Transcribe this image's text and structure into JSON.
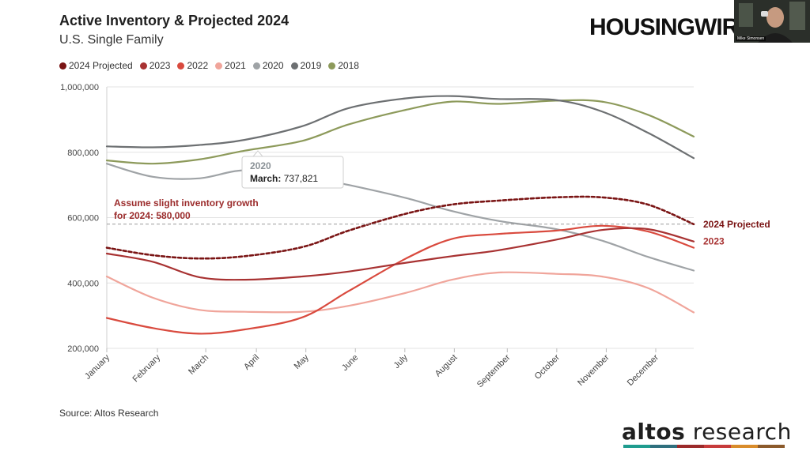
{
  "header": {
    "title": "Active Inventory & Projected 2024",
    "subtitle": "U.S. Single Family",
    "brand": "HOUSINGWIRE",
    "webcam_caption": "Mike Simonsen"
  },
  "footer": {
    "source": "Source: Altos Research",
    "logo_word1": "altos",
    "logo_word2": "research",
    "logo_bar_colors": [
      "#1f9c8e",
      "#2f6f7d",
      "#9b2a2a",
      "#c73b3b",
      "#d98c2b",
      "#8b5a2b"
    ]
  },
  "chart_data": {
    "type": "line",
    "title": "Active Inventory & Projected 2024",
    "subtitle": "U.S. Single Family",
    "ylim": [
      200000,
      1000000
    ],
    "yticks": [
      {
        "value": 200000,
        "label": "200,000"
      },
      {
        "value": 400000,
        "label": "400,000"
      },
      {
        "value": 600000,
        "label": "600,000"
      },
      {
        "value": 800000,
        "label": "800,000"
      },
      {
        "value": 1000000,
        "label": "1,000,000"
      }
    ],
    "grid": true,
    "legend_position": "top-left",
    "x_weeks": [
      1,
      5,
      9,
      13,
      18,
      22,
      27,
      31,
      35,
      40,
      44,
      48,
      52
    ],
    "xticks": [
      {
        "week": 1,
        "label": "January"
      },
      {
        "week": 5.4,
        "label": "February"
      },
      {
        "week": 9.6,
        "label": "March"
      },
      {
        "week": 14,
        "label": "April"
      },
      {
        "week": 18.3,
        "label": "May"
      },
      {
        "week": 22.6,
        "label": "June"
      },
      {
        "week": 26.9,
        "label": "July"
      },
      {
        "week": 31.2,
        "label": "August"
      },
      {
        "week": 35.8,
        "label": "September"
      },
      {
        "week": 40.1,
        "label": "October"
      },
      {
        "week": 44.4,
        "label": "November"
      },
      {
        "week": 48.7,
        "label": "December"
      }
    ],
    "series": [
      {
        "name": "2018",
        "color": "#8d9a5b",
        "dashed": false,
        "values": [
          775000,
          765000,
          778000,
          805000,
          835000,
          885000,
          930000,
          955000,
          948000,
          958000,
          955000,
          915000,
          848000
        ]
      },
      {
        "name": "2019",
        "color": "#6d7072",
        "dashed": false,
        "values": [
          818000,
          815000,
          822000,
          838000,
          880000,
          935000,
          965000,
          972000,
          963000,
          960000,
          925000,
          860000,
          782000
        ]
      },
      {
        "name": "2020",
        "color": "#9fa3a6",
        "dashed": false,
        "values": [
          765000,
          725000,
          720000,
          745000,
          728000,
          700000,
          660000,
          620000,
          590000,
          565000,
          530000,
          480000,
          438000
        ]
      },
      {
        "name": "2021",
        "color": "#f0a59b",
        "dashed": false,
        "values": [
          420000,
          355000,
          318000,
          312000,
          312000,
          330000,
          370000,
          410000,
          432000,
          428000,
          420000,
          385000,
          310000
        ]
      },
      {
        "name": "2022",
        "color": "#d94a3e",
        "dashed": false,
        "values": [
          293000,
          262000,
          245000,
          258000,
          295000,
          375000,
          475000,
          535000,
          550000,
          560000,
          575000,
          558000,
          508000
        ]
      },
      {
        "name": "2023",
        "color": "#a83232",
        "dashed": false,
        "values": [
          490000,
          465000,
          418000,
          410000,
          420000,
          435000,
          462000,
          482000,
          500000,
          532000,
          562000,
          565000,
          527000
        ]
      },
      {
        "name": "2024 Projected",
        "color": "#7a1414",
        "dashed": true,
        "values": [
          508000,
          485000,
          475000,
          482000,
          510000,
          560000,
          612000,
          640000,
          652000,
          662000,
          662000,
          640000,
          580000
        ]
      }
    ],
    "legend_order": [
      "2024 Projected",
      "2023",
      "2022",
      "2021",
      "2020",
      "2019",
      "2018"
    ],
    "reference_line": {
      "value": 580000
    },
    "annotations": {
      "assumption_line1": "Assume slight inventory growth",
      "assumption_line2": "for 2024: 580,000",
      "tooltip_series": "2020",
      "tooltip_label": "March:",
      "tooltip_value": "737,821",
      "end_label_projected": "2024 Projected",
      "end_label_2023": "2023"
    }
  }
}
